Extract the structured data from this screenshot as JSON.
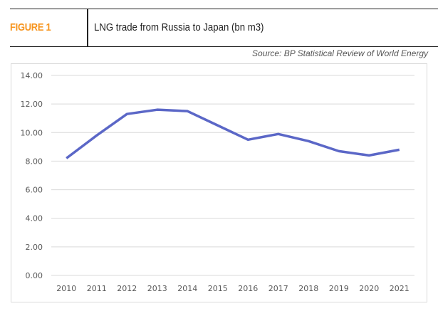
{
  "header": {
    "figure_label": "FIGURE 1",
    "title": "LNG trade from Russia to Japan (bn m3)",
    "source": "Source: BP Statistical Review of World Energy"
  },
  "colors": {
    "accent": "#f7941d",
    "line": "#5b67c7",
    "grid": "#d9d9d9"
  },
  "chart_data": {
    "type": "line",
    "title": "LNG trade from Russia to Japan (bn m3)",
    "xlabel": "",
    "ylabel": "",
    "categories": [
      "2010",
      "2011",
      "2012",
      "2013",
      "2014",
      "2015",
      "2016",
      "2017",
      "2018",
      "2019",
      "2020",
      "2021"
    ],
    "series": [
      {
        "name": "LNG trade from Russia to Japan",
        "values": [
          8.2,
          9.8,
          11.3,
          11.6,
          11.5,
          10.5,
          9.5,
          9.9,
          9.4,
          8.7,
          8.4,
          8.8
        ]
      }
    ],
    "ylim": [
      0,
      14
    ],
    "yticks": [
      "0.00",
      "2.00",
      "4.00",
      "6.00",
      "8.00",
      "10.00",
      "12.00",
      "14.00"
    ],
    "grid": true,
    "legend": "none"
  }
}
